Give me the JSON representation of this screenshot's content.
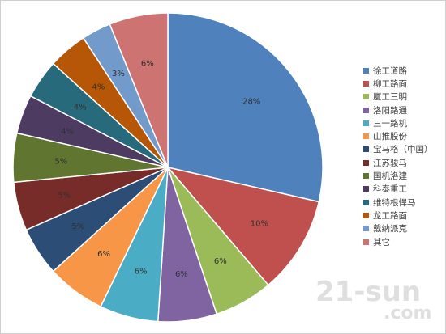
{
  "chart_data": {
    "type": "pie",
    "title": "",
    "categories": [
      "徐工道路",
      "柳工路面",
      "厦工三明",
      "洛阳路通",
      "三一路机",
      "山推股份",
      "宝马格（中国）",
      "江苏骏马",
      "国机洛建",
      "科泰重工",
      "维特根悍马",
      "龙工路面",
      "戴纳派克",
      "其它"
    ],
    "values": [
      28,
      10,
      6,
      6,
      6,
      6,
      5,
      5,
      5,
      4,
      4,
      4,
      3,
      6
    ],
    "value_labels": [
      "28%",
      "10%",
      "6%",
      "6%",
      "6%",
      "6%",
      "5%",
      "5%",
      "5%",
      "4%",
      "4%",
      "4%",
      "3%",
      "6%"
    ],
    "colors": [
      "#4F81BD",
      "#C0504D",
      "#9BBB59",
      "#8064A2",
      "#4BACC6",
      "#F79646",
      "#2C4D75",
      "#772C2A",
      "#5F7530",
      "#4D3B62",
      "#276A7C",
      "#B65708",
      "#729ACA",
      "#CD7371"
    ],
    "legend_position": "right"
  },
  "watermark": {
    "main": "21-sun",
    "sub": ".com"
  }
}
